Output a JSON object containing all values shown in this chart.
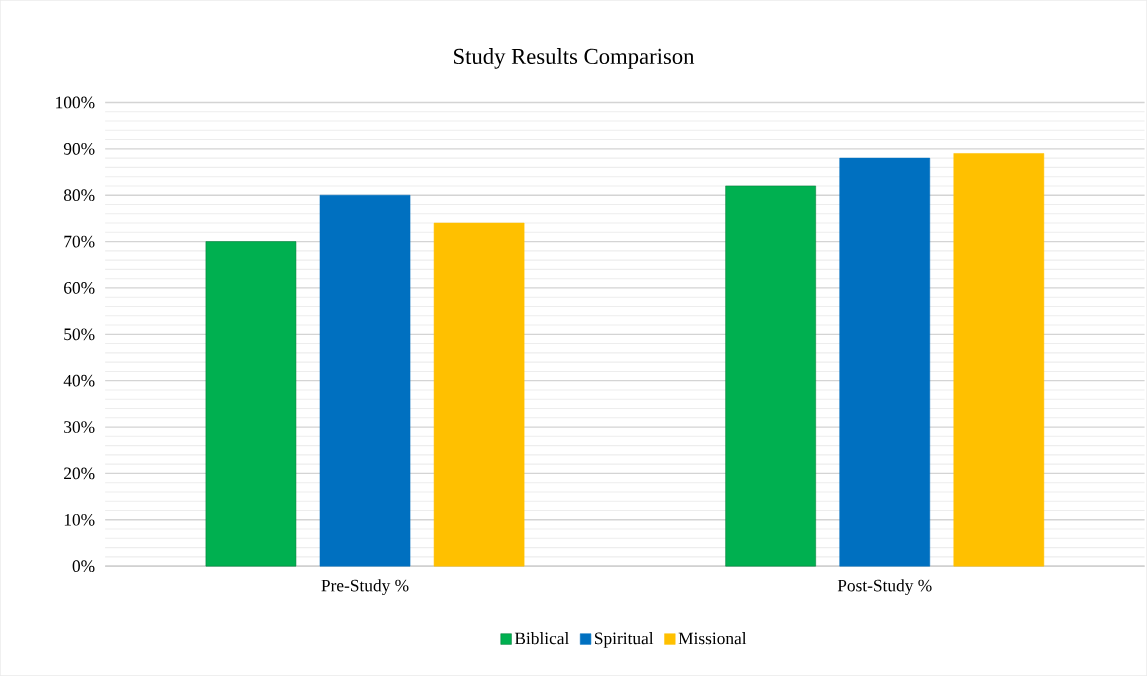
{
  "chart_data": {
    "type": "bar",
    "title": "Study Results Comparison",
    "categories": [
      "Pre-Study %",
      "Post-Study %"
    ],
    "series": [
      {
        "name": "Biblical",
        "color": "#00b050",
        "values": [
          70,
          82
        ]
      },
      {
        "name": "Spiritual",
        "color": "#0070c0",
        "values": [
          80,
          88
        ]
      },
      {
        "name": "Missional",
        "color": "#ffc000",
        "values": [
          74,
          89
        ]
      }
    ],
    "ylim": [
      0,
      100
    ],
    "yticks": [
      {
        "value": 0,
        "label": "0%"
      },
      {
        "value": 10,
        "label": "10%"
      },
      {
        "value": 20,
        "label": "20%"
      },
      {
        "value": 30,
        "label": "30%"
      },
      {
        "value": 40,
        "label": "40%"
      },
      {
        "value": 50,
        "label": "50%"
      },
      {
        "value": 60,
        "label": "60%"
      },
      {
        "value": 70,
        "label": "70%"
      },
      {
        "value": 80,
        "label": "80%"
      },
      {
        "value": 90,
        "label": "90%"
      },
      {
        "value": 100,
        "label": "100%"
      }
    ],
    "grid": "y",
    "legend": "bottom"
  }
}
